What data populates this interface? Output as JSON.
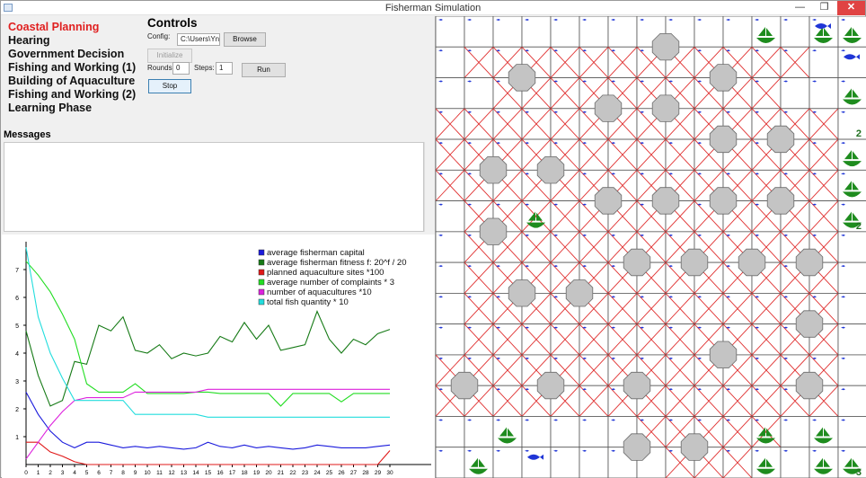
{
  "window": {
    "title": "Fisherman Simulation",
    "min_glyph": "—",
    "max_glyph": "❒",
    "close_glyph": "✕"
  },
  "phases": [
    {
      "label": "Coastal Planning",
      "active": true
    },
    {
      "label": "Hearing",
      "active": false
    },
    {
      "label": "Government Decision",
      "active": false
    },
    {
      "label": "Fishing and Working (1)",
      "active": false
    },
    {
      "label": "Building of Aquaculture",
      "active": false
    },
    {
      "label": "Fishing and Working (2)",
      "active": false
    },
    {
      "label": "Learning Phase",
      "active": false
    }
  ],
  "controls": {
    "title": "Controls",
    "config_label": "Config:",
    "config_value": "C:\\Users\\Yng",
    "browse_label": "Browse",
    "initialize_label": "Initialize",
    "rounds_label": "Rounds:",
    "rounds_value": "0",
    "steps_label": "Steps:",
    "steps_value": "1",
    "run_label": "Run",
    "stop_label": "Stop"
  },
  "messages": {
    "title": "Messages",
    "content": ""
  },
  "colors": {
    "active_phase": "#e02020",
    "grid_line": "#555555",
    "cross": "#e03030",
    "rock": "#c4c4c4",
    "boat": "#1e8c1e",
    "fish": "#1f35d6"
  },
  "chart_data": {
    "type": "line",
    "x": [
      0,
      1,
      2,
      3,
      4,
      5,
      6,
      7,
      8,
      9,
      10,
      11,
      12,
      13,
      14,
      15,
      16,
      17,
      18,
      19,
      20,
      21,
      22,
      23,
      24,
      25,
      26,
      27,
      28,
      29,
      30
    ],
    "ylim": [
      0,
      8
    ],
    "xlim": [
      0,
      31
    ],
    "y_ticks": [
      1,
      2,
      3,
      4,
      5,
      6,
      7
    ],
    "grid": false,
    "legend_position": "top-right",
    "series": [
      {
        "name": "average fisherman capital",
        "color": "#1a1adc",
        "values": [
          2.6,
          1.8,
          1.2,
          0.8,
          0.6,
          0.8,
          0.8,
          0.7,
          0.6,
          0.65,
          0.6,
          0.65,
          0.6,
          0.55,
          0.6,
          0.8,
          0.65,
          0.6,
          0.7,
          0.6,
          0.65,
          0.6,
          0.55,
          0.6,
          0.7,
          0.65,
          0.6,
          0.6,
          0.6,
          0.65,
          0.7
        ]
      },
      {
        "name": "average fisherman fitness f: 20^f / 20",
        "color": "#167a16",
        "values": [
          4.8,
          3.2,
          2.1,
          2.3,
          3.7,
          3.6,
          5.0,
          4.8,
          5.3,
          4.1,
          4.0,
          4.3,
          3.8,
          4.0,
          3.9,
          4.0,
          4.6,
          4.4,
          5.1,
          4.5,
          5.0,
          4.1,
          4.2,
          4.3,
          5.5,
          4.5,
          4.0,
          4.5,
          4.3,
          4.7,
          4.85
        ]
      },
      {
        "name": "planned aquaculture sites *100",
        "color": "#e01818",
        "values": [
          0.8,
          0.8,
          0.45,
          0.3,
          0.1,
          0,
          0,
          0,
          0,
          0,
          0,
          0,
          0,
          0,
          0,
          0,
          0,
          0,
          0,
          0,
          0,
          0,
          0,
          0,
          0,
          0,
          0,
          0,
          0,
          0,
          0.5
        ]
      },
      {
        "name": "average number of complaints * 3",
        "color": "#22dd22",
        "values": [
          7.3,
          6.8,
          6.2,
          5.4,
          4.5,
          2.9,
          2.6,
          2.6,
          2.6,
          2.9,
          2.55,
          2.55,
          2.55,
          2.55,
          2.6,
          2.6,
          2.55,
          2.55,
          2.55,
          2.55,
          2.55,
          2.1,
          2.55,
          2.55,
          2.55,
          2.55,
          2.25,
          2.55,
          2.55,
          2.55,
          2.55
        ]
      },
      {
        "name": "number of aquacultures *10",
        "color": "#dd22dd",
        "values": [
          0.2,
          0.8,
          1.4,
          1.9,
          2.3,
          2.4,
          2.4,
          2.4,
          2.4,
          2.6,
          2.6,
          2.6,
          2.6,
          2.6,
          2.6,
          2.7,
          2.7,
          2.7,
          2.7,
          2.7,
          2.7,
          2.7,
          2.7,
          2.7,
          2.7,
          2.7,
          2.7,
          2.7,
          2.7,
          2.7,
          2.7
        ]
      },
      {
        "name": "total fish quantity * 10",
        "color": "#22dddd",
        "values": [
          7.8,
          5.3,
          4.0,
          3.1,
          2.3,
          2.3,
          2.3,
          2.3,
          2.3,
          1.8,
          1.8,
          1.8,
          1.8,
          1.8,
          1.8,
          1.7,
          1.7,
          1.7,
          1.7,
          1.7,
          1.7,
          1.7,
          1.7,
          1.7,
          1.7,
          1.7,
          1.7,
          1.7,
          1.7,
          1.7,
          1.7
        ]
      }
    ]
  },
  "map": {
    "cols": 15,
    "rows": 15,
    "cell_labels": [
      {
        "r": 3,
        "c": 14,
        "text": "2"
      },
      {
        "r": 6,
        "c": 14,
        "text": "2"
      },
      {
        "r": 14,
        "c": 14,
        "text": "3"
      }
    ],
    "crossed": [
      "000000000000000",
      "011111111111100",
      "001111111111000",
      "111111111111110",
      "111111111111110",
      "111111111111110",
      "011111111111110",
      "011111111111110",
      "011111111111110",
      "011111111111110",
      "011111111111110",
      "111111111111110",
      "111111111111110",
      "000000011111000",
      "000000001110000"
    ],
    "rocks": [
      [
        0,
        7
      ],
      [
        1,
        2
      ],
      [
        1,
        9
      ],
      [
        2,
        5
      ],
      [
        2,
        7
      ],
      [
        3,
        9
      ],
      [
        3,
        11
      ],
      [
        4,
        1
      ],
      [
        4,
        3
      ],
      [
        5,
        5
      ],
      [
        5,
        7
      ],
      [
        5,
        9
      ],
      [
        5,
        11
      ],
      [
        6,
        1
      ],
      [
        7,
        6
      ],
      [
        7,
        8
      ],
      [
        7,
        10
      ],
      [
        7,
        12
      ],
      [
        8,
        2
      ],
      [
        8,
        4
      ],
      [
        9,
        12
      ],
      [
        10,
        9
      ],
      [
        11,
        0
      ],
      [
        11,
        3
      ],
      [
        11,
        6
      ],
      [
        11,
        12
      ],
      [
        13,
        6
      ],
      [
        13,
        8
      ]
    ],
    "boats": [
      [
        0,
        11
      ],
      [
        0,
        13
      ],
      [
        0,
        14
      ],
      [
        2,
        14
      ],
      [
        4,
        14
      ],
      [
        5,
        14
      ],
      [
        6,
        3
      ],
      [
        6,
        14
      ],
      [
        13,
        2
      ],
      [
        13,
        11
      ],
      [
        13,
        13
      ],
      [
        14,
        1
      ],
      [
        14,
        11
      ],
      [
        14,
        13
      ],
      [
        14,
        14
      ]
    ],
    "big_fish": [
      [
        0,
        13
      ],
      [
        1,
        14
      ],
      [
        14,
        3
      ]
    ]
  }
}
